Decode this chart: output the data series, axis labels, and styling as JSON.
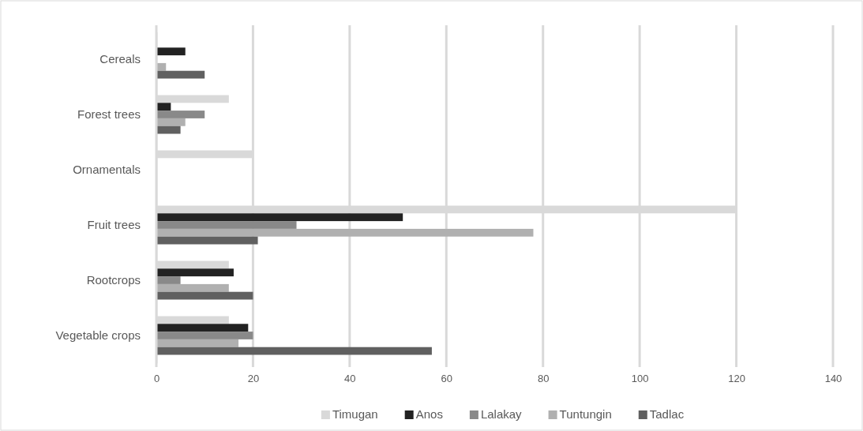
{
  "chart_data": {
    "type": "bar",
    "orientation": "horizontal",
    "categories": [
      "Cereals",
      "Forest trees",
      "Ornamentals",
      "Fruit trees",
      "Rootcrops",
      "Vegetable crops"
    ],
    "series": [
      {
        "name": "Timugan",
        "color": "#d9d9d9",
        "values": [
          0,
          15,
          20,
          120,
          15,
          15
        ]
      },
      {
        "name": "Anos",
        "color": "#222222",
        "values": [
          6,
          3,
          0,
          51,
          16,
          19
        ]
      },
      {
        "name": "Lalakay",
        "color": "#898989",
        "values": [
          0,
          10,
          0,
          29,
          5,
          20
        ]
      },
      {
        "name": "Tuntungin",
        "color": "#b0b0b0",
        "values": [
          2,
          6,
          0,
          78,
          15,
          17
        ]
      },
      {
        "name": "Tadlac",
        "color": "#606060",
        "values": [
          10,
          5,
          0,
          21,
          20,
          57
        ]
      }
    ],
    "xlim": [
      0,
      140
    ],
    "xticks": [
      0,
      20,
      40,
      60,
      80,
      100,
      120,
      140
    ],
    "grid": "x",
    "legend": "bottom"
  }
}
